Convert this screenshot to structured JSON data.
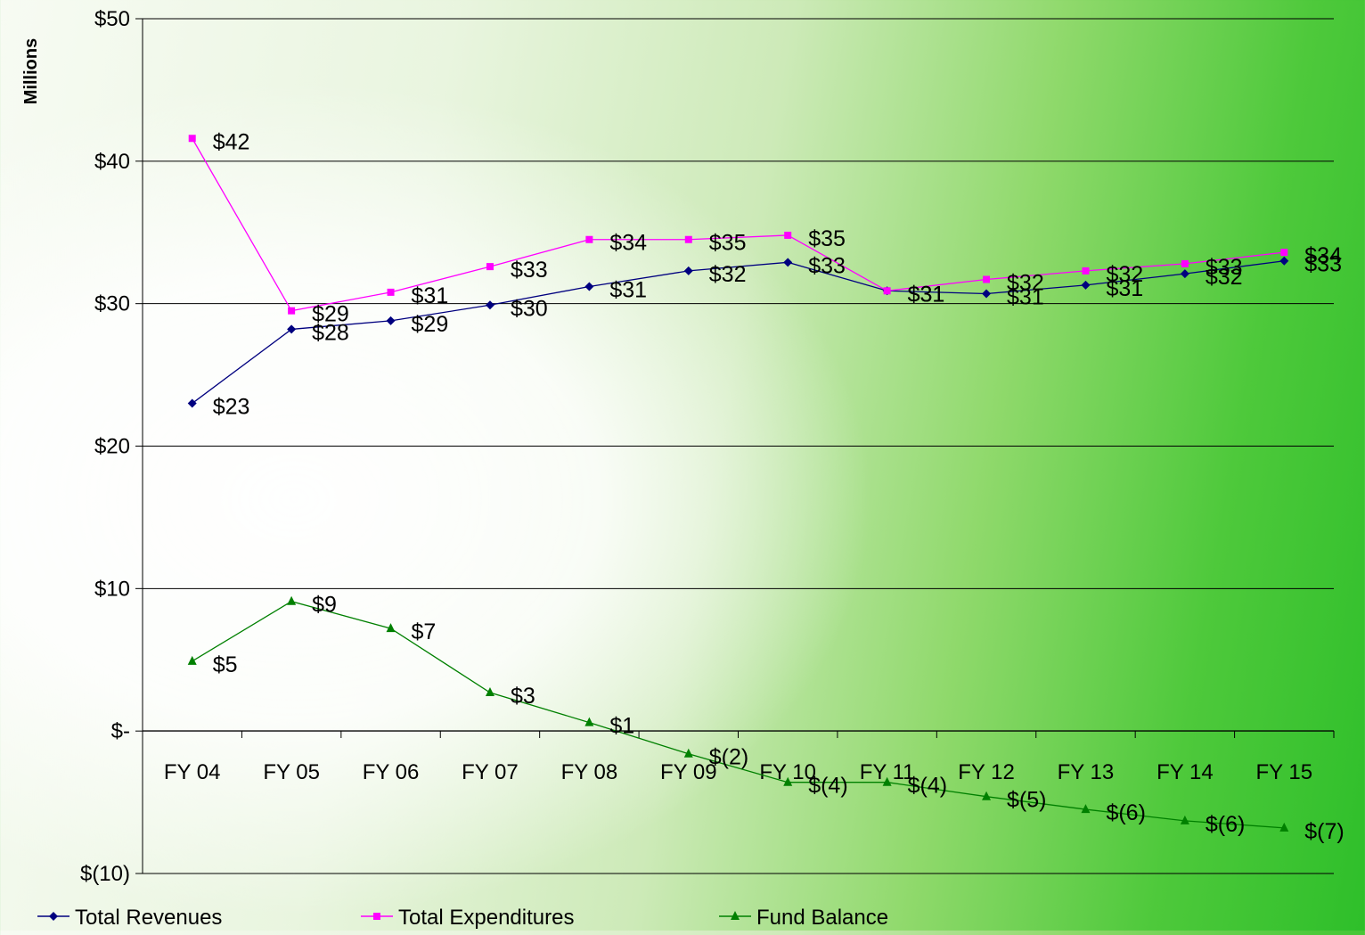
{
  "chart_data": {
    "type": "line",
    "ylabel": "Millions",
    "ylim": [
      -10,
      50
    ],
    "yticks": [
      -10,
      0,
      10,
      20,
      30,
      40,
      50
    ],
    "ytick_labels": [
      "$(10)",
      "$-",
      "$10",
      "$20",
      "$30",
      "$40",
      "$50"
    ],
    "categories": [
      "FY 04",
      "FY 05",
      "FY 06",
      "FY 07",
      "FY 08",
      "FY 09",
      "FY 10",
      "FY 11",
      "FY 12",
      "FY 13",
      "FY 14",
      "FY 15"
    ],
    "grid": "horizontal",
    "legend_position": "bottom",
    "series": [
      {
        "name": "Total Revenues",
        "color": "#00007f",
        "marker": "diamond",
        "values": [
          23.0,
          28.2,
          28.8,
          29.9,
          31.2,
          32.3,
          32.9,
          30.9,
          30.7,
          31.3,
          32.1,
          33.0
        ],
        "labels": [
          "$23",
          "$28",
          "$29",
          "$30",
          "$31",
          "$32",
          "$33",
          "$31",
          "$31",
          "$31",
          "$32",
          "$33"
        ]
      },
      {
        "name": "Total Expenditures",
        "color": "#ff00ff",
        "marker": "square",
        "values": [
          41.6,
          29.5,
          30.8,
          32.6,
          34.5,
          34.5,
          34.8,
          30.9,
          31.7,
          32.3,
          32.8,
          33.6
        ],
        "labels": [
          "$42",
          "$29",
          "$31",
          "$33",
          "$34",
          "$35",
          "$35",
          "$31",
          "$32",
          "$32",
          "$33",
          "$34"
        ]
      },
      {
        "name": "Fund Balance",
        "color": "#008000",
        "marker": "triangle",
        "values": [
          4.9,
          9.1,
          7.2,
          2.7,
          0.6,
          -1.6,
          -3.6,
          -3.6,
          -4.6,
          -5.5,
          -6.3,
          -6.8
        ],
        "labels": [
          "$5",
          "$9",
          "$7",
          "$3",
          "$1",
          "$(2)",
          "$(4)",
          "$(4)",
          "$(5)",
          "$(6)",
          "$(6)",
          "$(7)"
        ]
      }
    ]
  }
}
